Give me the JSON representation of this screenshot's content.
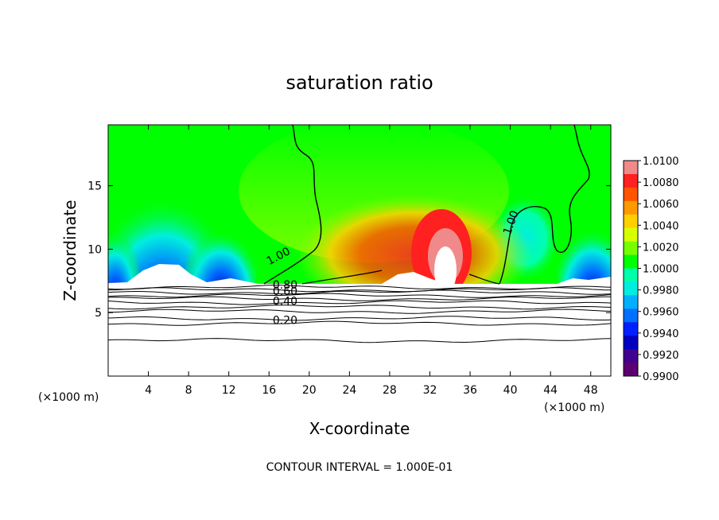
{
  "chart_data": {
    "type": "heatmap",
    "title": "saturation ratio",
    "xlabel": "X-coordinate",
    "ylabel": "Z-coordinate",
    "x_unit": "(×1000 m)",
    "y_unit": "(×1000 m)",
    "footer": "CONTOUR INTERVAL = 1.000E-01",
    "xlim": [
      0,
      50
    ],
    "ylim": [
      0,
      19.8
    ],
    "x_ticks": [
      4,
      8,
      12,
      16,
      20,
      24,
      28,
      32,
      36,
      40,
      44,
      48
    ],
    "y_ticks": [
      5,
      10,
      15
    ],
    "colorbar": {
      "levels": [
        "1.0100",
        "1.0080",
        "1.0060",
        "1.0040",
        "1.0020",
        "1.0000",
        "0.9980",
        "0.9960",
        "0.9940",
        "0.9920",
        "0.9900"
      ],
      "colors": [
        "#f08a8a",
        "#ff2020",
        "#ff5500",
        "#ff9900",
        "#ffd000",
        "#d8ff00",
        "#77ff00",
        "#00ff00",
        "#00ffaa",
        "#00eee0",
        "#00b0ff",
        "#0070ff",
        "#0020ff",
        "#0000c0",
        "#400090",
        "#5a0070"
      ]
    },
    "cloud_base_z": 7.3,
    "contour_labels": [
      {
        "text": "1.00",
        "x": 17.1,
        "z": 9.2
      },
      {
        "text": "1.00",
        "x": 40.4,
        "z": 12.0
      },
      {
        "text": "0.80",
        "x": 17.6,
        "z": 6.9
      },
      {
        "text": "0.60",
        "x": 17.6,
        "z": 6.4
      },
      {
        "text": "0.40",
        "x": 17.6,
        "z": 5.6
      },
      {
        "text": "0.20",
        "x": 17.6,
        "z": 4.1
      }
    ],
    "contour_lines_z": [
      7.0,
      6.8,
      6.6,
      6.35,
      6.1,
      5.8,
      5.45,
      5.1,
      4.55,
      4.15,
      2.8
    ],
    "color_field": "colors shown by filled region: green ≈ 1.0000 over most of domain; blue/purple (0.990–0.996) over x ≈ 1–13 and 43–50 at z ≈ 7.5–12; orange/red/pink (1.004–1.010) plume over x ≈ 18–38 peaking at x ≈ 33, z ≈ 13; white (no data) below z ≈ 7.3"
  }
}
